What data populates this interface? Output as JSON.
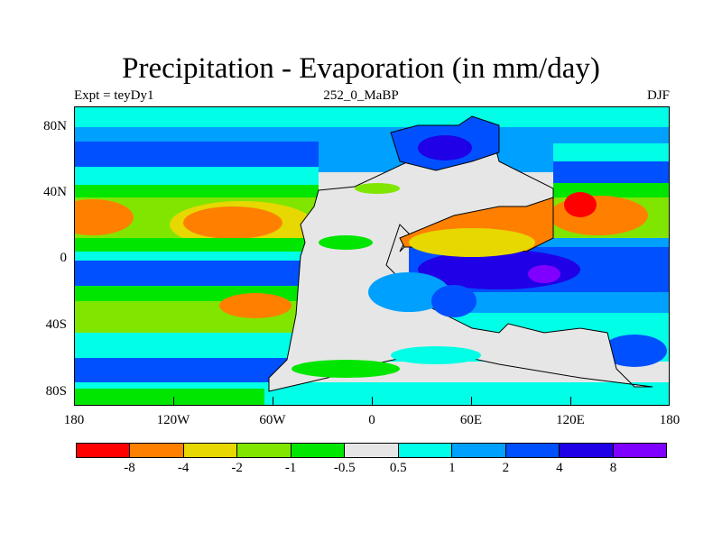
{
  "title": "Precipitation - Evaporation (in mm/day)",
  "subtitle_left": "Expt = teyDy1",
  "subtitle_center": "252_0_MaBP",
  "subtitle_right": "DJF",
  "y_axis": {
    "ticks": [
      "80N",
      "40N",
      "0",
      "40S",
      "80S"
    ],
    "values": [
      80,
      40,
      0,
      -40,
      -80
    ],
    "range": [
      -90,
      90
    ]
  },
  "x_axis": {
    "ticks": [
      "180",
      "120W",
      "60W",
      "0",
      "60E",
      "120E",
      "180"
    ],
    "values": [
      -180,
      -120,
      -60,
      0,
      60,
      120,
      180
    ],
    "range": [
      -180,
      180
    ]
  },
  "colorbar": {
    "colors": [
      "#ff0000",
      "#ff8000",
      "#e6d800",
      "#80e600",
      "#00e600",
      "#e6e6e6",
      "#00ffe6",
      "#00a0ff",
      "#0050ff",
      "#2000e6",
      "#8000ff"
    ],
    "labels": [
      "-8",
      "-4",
      "-2",
      "-1",
      "-0.5",
      "0.5",
      "1",
      "2",
      "4",
      "8"
    ]
  },
  "colors": {
    "land": "#e6e6e6",
    "coast": "#000000"
  }
}
